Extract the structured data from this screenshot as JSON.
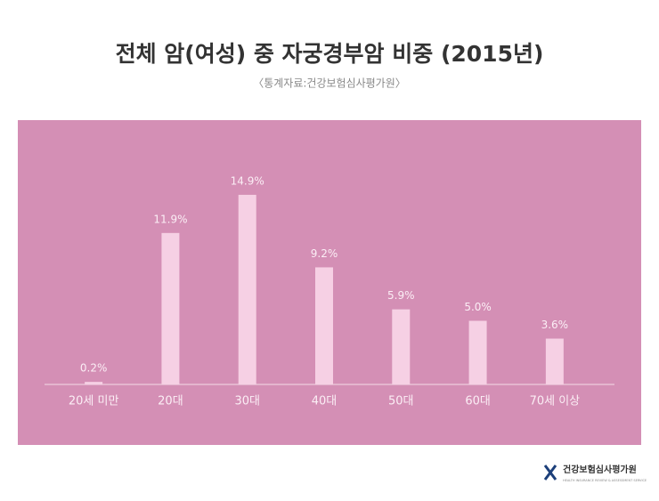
{
  "chart_data": {
    "type": "bar",
    "title": "전체 암(여성) 중 자궁경부암 비중 (2015년)",
    "subtitle": "〈통계자료:건강보험심사평가원〉",
    "categories": [
      "20세 미만",
      "20대",
      "30대",
      "40대",
      "50대",
      "60대",
      "70세 이상"
    ],
    "values": [
      0.2,
      11.9,
      14.9,
      9.2,
      5.9,
      5.0,
      3.6
    ],
    "value_labels": [
      "0.2%",
      "11.9%",
      "14.9%",
      "9.2%",
      "5.9%",
      "5.0%",
      "3.6%"
    ],
    "color": "#f6d0e4",
    "background": "#d48fb5",
    "logo": {
      "name": "건강보험심사평가원",
      "tagline": "HEALTH INSURANCE REVIEW & ASSESSMENT SERVICE"
    }
  }
}
